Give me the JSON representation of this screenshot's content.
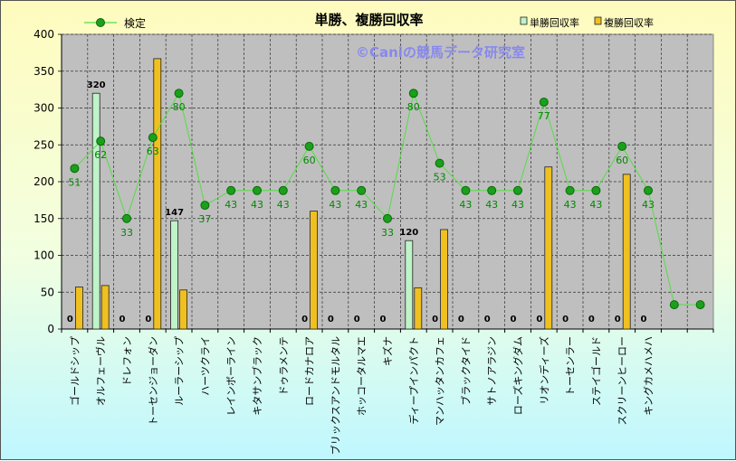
{
  "chart_data": {
    "type": "bar",
    "title": "単勝、複勝回収率",
    "watermark": "©Caniの競馬データ研究室",
    "ylim": [
      0,
      400
    ],
    "yticks": [
      0,
      50,
      100,
      150,
      200,
      250,
      300,
      350,
      400
    ],
    "grid": true,
    "legend_position": "top",
    "categories": [
      "ゴールドシップ",
      "オルフェーヴル",
      "ドレフォン",
      "トーセンジョーダン",
      "ルーラーシップ",
      "ハーツクライ",
      "レインボーライン",
      "キタサンブラック",
      "ドゥラメンテ",
      "ロードカナロア",
      "ブリックスアンドモルタル",
      "ホッコータルマエ",
      "キズナ",
      "ディープインパクト",
      "マンハッタンカフェ",
      "ブラックタイド",
      "サトノアラジン",
      "ローズキングダム",
      "リオンディーズ",
      "トーセンラー",
      "ステイゴールド",
      "スクリーンヒーロー",
      "キングカメハメハ",
      "",
      ""
    ],
    "series": [
      {
        "name": "単勝回収率",
        "kind": "bar",
        "color": "#bff3c8",
        "values": [
          0,
          320,
          0,
          0,
          147,
          null,
          null,
          null,
          null,
          0,
          null,
          null,
          null,
          120,
          0,
          null,
          null,
          null,
          0,
          null,
          null,
          0,
          0,
          null,
          null
        ],
        "labels": [
          "0",
          "320",
          "0",
          "0",
          "147",
          "",
          "",
          "",
          "",
          "0",
          "0",
          "0",
          "0",
          "120",
          "0",
          "0",
          "0",
          "0",
          "0",
          "0",
          "0",
          "0",
          "0",
          "",
          ""
        ]
      },
      {
        "name": "複勝回収率",
        "kind": "bar",
        "color": "#f0c020",
        "values": [
          57,
          59,
          null,
          367,
          53,
          null,
          null,
          null,
          null,
          160,
          null,
          null,
          null,
          56,
          135,
          null,
          null,
          null,
          220,
          null,
          null,
          210,
          null,
          null,
          null
        ]
      },
      {
        "name": "検定",
        "kind": "line",
        "color": "#22bb22",
        "values": [
          218,
          255,
          150,
          260,
          320,
          168,
          188,
          188,
          188,
          248,
          188,
          188,
          150,
          320,
          225,
          188,
          188,
          188,
          308,
          188,
          188,
          248,
          188,
          33,
          33
        ],
        "labels": [
          "51",
          "62",
          "33",
          "63",
          "80",
          "37",
          "43",
          "43",
          "43",
          "60",
          "43",
          "43",
          "33",
          "80",
          "53",
          "43",
          "43",
          "43",
          "77",
          "43",
          "43",
          "60",
          "43",
          "",
          ""
        ]
      }
    ]
  }
}
